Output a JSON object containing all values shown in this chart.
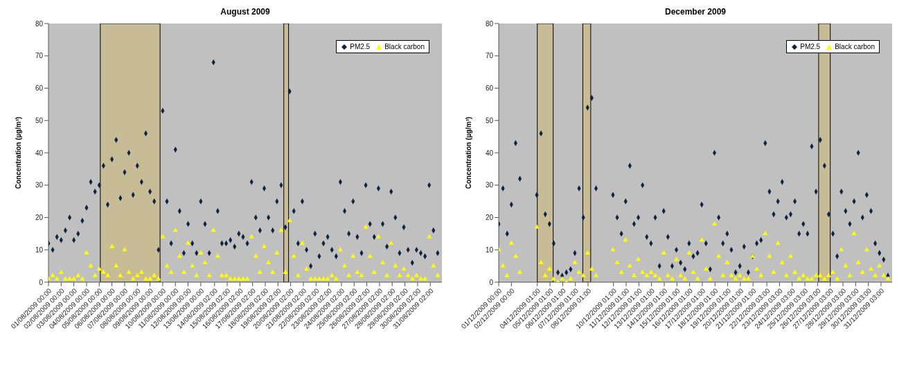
{
  "chart_data": [
    {
      "type": "scatter",
      "title": "August 2009",
      "ylabel": "Concentration (µg/m³)",
      "legend": "top right",
      "grid": false,
      "x": [
        "2009-08-01T00:00",
        "2009-08-01T08:00",
        "2009-08-01T16:00",
        "2009-08-02T00:00",
        "2009-08-02T08:00",
        "2009-08-02T16:00",
        "2009-08-03T00:00",
        "2009-08-03T08:00",
        "2009-08-03T16:00",
        "2009-08-04T00:00",
        "2009-08-04T08:00",
        "2009-08-04T16:00",
        "2009-08-05T00:00",
        "2009-08-05T08:00",
        "2009-08-05T16:00",
        "2009-08-06T00:00",
        "2009-08-06T08:00",
        "2009-08-06T16:00",
        "2009-08-07T00:00",
        "2009-08-07T08:00",
        "2009-08-07T16:00",
        "2009-08-08T00:00",
        "2009-08-08T08:00",
        "2009-08-08T16:00",
        "2009-08-09T00:00",
        "2009-08-09T08:00",
        "2009-08-09T16:00",
        "2009-08-10T00:00",
        "2009-08-10T08:00",
        "2009-08-10T16:00",
        "2009-08-11T00:00",
        "2009-08-11T08:00",
        "2009-08-11T16:00",
        "2009-08-12T00:00",
        "2009-08-12T08:00",
        "2009-08-12T16:00",
        "2009-08-13T00:00",
        "2009-08-13T08:00",
        "2009-08-13T16:00",
        "2009-08-14T00:00",
        "2009-08-14T08:00",
        "2009-08-14T16:00",
        "2009-08-15T00:00",
        "2009-08-15T08:00",
        "2009-08-15T16:00",
        "2009-08-16T00:00",
        "2009-08-16T08:00",
        "2009-08-16T16:00",
        "2009-08-17T00:00",
        "2009-08-17T08:00",
        "2009-08-17T16:00",
        "2009-08-18T00:00",
        "2009-08-18T08:00",
        "2009-08-18T16:00",
        "2009-08-19T00:00",
        "2009-08-19T08:00",
        "2009-08-19T16:00",
        "2009-08-20T00:00",
        "2009-08-20T08:00",
        "2009-08-20T16:00",
        "2009-08-21T00:00",
        "2009-08-21T08:00",
        "2009-08-21T16:00",
        "2009-08-22T00:00",
        "2009-08-22T08:00",
        "2009-08-22T16:00",
        "2009-08-23T00:00",
        "2009-08-23T08:00",
        "2009-08-23T16:00",
        "2009-08-24T00:00",
        "2009-08-24T08:00",
        "2009-08-24T16:00",
        "2009-08-25T00:00",
        "2009-08-25T08:00",
        "2009-08-25T16:00",
        "2009-08-26T00:00",
        "2009-08-26T08:00",
        "2009-08-26T16:00",
        "2009-08-27T00:00",
        "2009-08-27T08:00",
        "2009-08-27T16:00",
        "2009-08-28T00:00",
        "2009-08-28T08:00",
        "2009-08-28T16:00",
        "2009-08-29T00:00",
        "2009-08-29T08:00",
        "2009-08-29T16:00",
        "2009-08-30T00:00",
        "2009-08-30T08:00",
        "2009-08-30T16:00",
        "2009-08-31T00:00",
        "2009-08-31T08:00",
        "2009-08-31T16:00"
      ],
      "series": [
        {
          "name": "PM2.5",
          "color": "#0d2340",
          "marker": "diamond",
          "values": [
            12,
            10,
            14,
            13,
            16,
            20,
            13,
            15,
            19,
            23,
            31,
            28,
            30,
            36,
            24,
            38,
            44,
            26,
            34,
            40,
            27,
            36,
            31,
            46,
            28,
            25,
            10,
            53,
            25,
            12,
            41,
            22,
            9,
            18,
            12,
            9,
            25,
            18,
            9,
            68,
            22,
            12,
            12,
            13,
            11,
            15,
            14,
            12,
            31,
            20,
            16,
            29,
            20,
            16,
            25,
            30,
            17,
            59,
            22,
            12,
            25,
            10,
            5,
            15,
            8,
            12,
            14,
            10,
            8,
            31,
            22,
            15,
            25,
            14,
            9,
            30,
            18,
            14,
            29,
            18,
            11,
            28,
            20,
            9,
            17,
            10,
            6,
            10,
            9,
            8,
            30,
            16,
            9
          ]
        },
        {
          "name": "Black carbon",
          "color": "#ffff00",
          "marker": "triangle",
          "values": [
            1,
            2,
            1,
            3,
            1,
            1,
            1,
            2,
            1,
            9,
            5,
            2,
            4,
            3,
            2,
            11,
            5,
            2,
            10,
            3,
            1,
            2,
            3,
            1,
            1,
            2,
            1,
            14,
            5,
            3,
            16,
            8,
            3,
            12,
            5,
            2,
            9,
            6,
            2,
            16,
            8,
            2,
            2,
            1,
            1,
            1,
            1,
            1,
            14,
            8,
            3,
            11,
            6,
            3,
            9,
            16,
            3,
            19,
            8,
            2,
            12,
            4,
            1,
            1,
            1,
            1,
            1,
            2,
            1,
            10,
            5,
            2,
            8,
            3,
            2,
            17,
            8,
            3,
            14,
            6,
            2,
            12,
            5,
            2,
            4,
            2,
            1,
            2,
            1,
            1,
            14,
            5,
            2
          ]
        }
      ],
      "xlim": [
        "2009-08-01T00:00",
        "2009-09-01T00:00"
      ],
      "xticks": [
        {
          "value": "2009-08-01T00:00",
          "label": "01/08/2009 00:00"
        },
        {
          "value": "2009-08-02T00:00",
          "label": "02/08/2009 00:00"
        },
        {
          "value": "2009-08-03T00:00",
          "label": "03/08/2009 00:00"
        },
        {
          "value": "2009-08-04T00:00",
          "label": "04/08/2009 00:00"
        },
        {
          "value": "2009-08-05T00:00",
          "label": "05/08/2009 00:00"
        },
        {
          "value": "2009-08-06T00:00",
          "label": "06/08/2009 00:00"
        },
        {
          "value": "2009-08-07T00:00",
          "label": "07/08/2009 00:00"
        },
        {
          "value": "2009-08-08T00:00",
          "label": "08/08/2009 00:00"
        },
        {
          "value": "2009-08-09T00:00",
          "label": "09/08/2009 00:00"
        },
        {
          "value": "2009-08-10T00:00",
          "label": "10/08/2009 00:00"
        },
        {
          "value": "2009-08-11T00:00",
          "label": "11/08/2009 00:00"
        },
        {
          "value": "2009-08-12T00:00",
          "label": "12/08/2009 00:00"
        },
        {
          "value": "2009-08-13T00:00",
          "label": "13/08/2009 00:00"
        },
        {
          "value": "2009-08-14T02:00",
          "label": "14/08/2009 02:00"
        },
        {
          "value": "2009-08-15T02:00",
          "label": "15/08/2009 02:00"
        },
        {
          "value": "2009-08-16T02:00",
          "label": "16/08/2009 02:00"
        },
        {
          "value": "2009-08-17T02:00",
          "label": "17/08/2009 02:00"
        },
        {
          "value": "2009-08-18T02:00",
          "label": "18/08/2009 02:00"
        },
        {
          "value": "2009-08-19T02:00",
          "label": "19/08/2009 02:00"
        },
        {
          "value": "2009-08-20T02:00",
          "label": "20/08/2009 02:00"
        },
        {
          "value": "2009-08-21T02:00",
          "label": "21/08/2009 02:00"
        },
        {
          "value": "2009-08-22T02:00",
          "label": "22/08/2009 02:00"
        },
        {
          "value": "2009-08-23T02:00",
          "label": "23/08/2009 02:00"
        },
        {
          "value": "2009-08-24T02:00",
          "label": "24/08/2009 02:00"
        },
        {
          "value": "2009-08-25T02:00",
          "label": "25/08/2009 02:00"
        },
        {
          "value": "2009-08-26T02:00",
          "label": "26/08/2009 02:00"
        },
        {
          "value": "2009-08-27T02:00",
          "label": "27/08/2009 02:00"
        },
        {
          "value": "2009-08-28T02:00",
          "label": "28/08/2009 02:00"
        },
        {
          "value": "2009-08-29T02:00",
          "label": "29/08/2009 02:00"
        },
        {
          "value": "2009-08-30T02:00",
          "label": "30/08/2009 02:00"
        },
        {
          "value": "2009-08-31T02:00",
          "label": "31/08/2009 02:00"
        }
      ],
      "ylim": [
        0,
        80
      ],
      "yticks": [
        0,
        10,
        20,
        30,
        40,
        50,
        60,
        70,
        80
      ],
      "bands": [
        {
          "axis": "x",
          "from": "2009-08-05T02:00",
          "to": "2009-08-09T19:00",
          "color": "#c8bc96"
        },
        {
          "axis": "x",
          "from": "2009-08-19T13:00",
          "to": "2009-08-19T22:00",
          "color": "#c8bc96"
        }
      ]
    },
    {
      "type": "scatter",
      "title": "December 2009",
      "ylabel": "Concentration (µg/m³)",
      "legend": "top right",
      "grid": false,
      "x": [
        "2009-12-01T00:00",
        "2009-12-01T08:00",
        "2009-12-01T16:00",
        "2009-12-02T00:00",
        "2009-12-02T08:00",
        "2009-12-02T16:00",
        "2009-12-04T00:00",
        "2009-12-04T08:00",
        "2009-12-04T16:00",
        "2009-12-05T00:00",
        "2009-12-05T08:00",
        "2009-12-05T16:00",
        "2009-12-06T00:00",
        "2009-12-06T08:00",
        "2009-12-06T16:00",
        "2009-12-07T00:00",
        "2009-12-07T08:00",
        "2009-12-07T16:00",
        "2009-12-08T00:00",
        "2009-12-08T08:00",
        "2009-12-08T16:00",
        "2009-12-10T00:00",
        "2009-12-10T08:00",
        "2009-12-10T16:00",
        "2009-12-11T00:00",
        "2009-12-11T08:00",
        "2009-12-11T16:00",
        "2009-12-12T00:00",
        "2009-12-12T08:00",
        "2009-12-12T16:00",
        "2009-12-13T00:00",
        "2009-12-13T08:00",
        "2009-12-13T16:00",
        "2009-12-14T00:00",
        "2009-12-14T08:00",
        "2009-12-14T16:00",
        "2009-12-15T00:00",
        "2009-12-15T08:00",
        "2009-12-15T16:00",
        "2009-12-16T00:00",
        "2009-12-16T08:00",
        "2009-12-16T16:00",
        "2009-12-17T00:00",
        "2009-12-17T08:00",
        "2009-12-17T16:00",
        "2009-12-18T00:00",
        "2009-12-18T08:00",
        "2009-12-18T16:00",
        "2009-12-19T00:00",
        "2009-12-19T08:00",
        "2009-12-19T16:00",
        "2009-12-20T00:00",
        "2009-12-20T08:00",
        "2009-12-20T16:00",
        "2009-12-21T00:00",
        "2009-12-21T08:00",
        "2009-12-21T16:00",
        "2009-12-22T00:00",
        "2009-12-22T08:00",
        "2009-12-22T16:00",
        "2009-12-23T00:00",
        "2009-12-23T08:00",
        "2009-12-23T16:00",
        "2009-12-24T00:00",
        "2009-12-24T08:00",
        "2009-12-24T16:00",
        "2009-12-25T00:00",
        "2009-12-25T08:00",
        "2009-12-25T16:00",
        "2009-12-26T00:00",
        "2009-12-26T08:00",
        "2009-12-26T16:00",
        "2009-12-27T00:00",
        "2009-12-27T08:00",
        "2009-12-27T16:00",
        "2009-12-28T00:00",
        "2009-12-28T08:00",
        "2009-12-28T16:00",
        "2009-12-29T00:00",
        "2009-12-29T08:00",
        "2009-12-29T16:00",
        "2009-12-30T00:00",
        "2009-12-30T08:00",
        "2009-12-30T16:00",
        "2009-12-31T00:00",
        "2009-12-31T08:00",
        "2009-12-31T16:00"
      ],
      "series": [
        {
          "name": "PM2.5",
          "color": "#0d2340",
          "marker": "diamond",
          "values": [
            18,
            29,
            15,
            24,
            43,
            32,
            27,
            46,
            21,
            18,
            12,
            3,
            2,
            3,
            4,
            9,
            29,
            20,
            54,
            57,
            29,
            27,
            20,
            15,
            25,
            36,
            18,
            20,
            30,
            14,
            12,
            20,
            5,
            22,
            14,
            5,
            10,
            6,
            4,
            12,
            8,
            9,
            24,
            12,
            4,
            40,
            20,
            12,
            15,
            10,
            3,
            5,
            11,
            3,
            8,
            12,
            13,
            43,
            28,
            21,
            25,
            31,
            20,
            21,
            25,
            15,
            18,
            15,
            42,
            28,
            44,
            36,
            21,
            15,
            8,
            28,
            22,
            18,
            25,
            40,
            20,
            27,
            22,
            12,
            9,
            7,
            2
          ]
        },
        {
          "name": "Black carbon",
          "color": "#ffff00",
          "marker": "triangle",
          "values": [
            10,
            5,
            2,
            12,
            8,
            3,
            17,
            6,
            2,
            4,
            1,
            0,
            1,
            0,
            1,
            6,
            3,
            2,
            9,
            4,
            2,
            10,
            6,
            3,
            13,
            5,
            2,
            7,
            3,
            2,
            3,
            2,
            1,
            9,
            2,
            1,
            7,
            2,
            1,
            9,
            3,
            1,
            13,
            4,
            1,
            18,
            8,
            2,
            6,
            2,
            1,
            2,
            1,
            1,
            8,
            4,
            2,
            15,
            8,
            3,
            12,
            6,
            2,
            8,
            3,
            1,
            2,
            1,
            1,
            2,
            2,
            1,
            2,
            3,
            1,
            10,
            5,
            2,
            15,
            6,
            3,
            10,
            4,
            2,
            5,
            2,
            1
          ]
        }
      ],
      "xlim": [
        "2009-12-01T00:00",
        "2010-01-01T00:00"
      ],
      "xticks": [
        {
          "value": "2009-12-01T00:00",
          "label": "01/12/2009 00:00"
        },
        {
          "value": "2009-12-02T00:00",
          "label": "02/12/2009 00:00"
        },
        {
          "value": "2009-12-04T01:00",
          "label": "04/12/2009 01:00"
        },
        {
          "value": "2009-12-05T01:00",
          "label": "05/12/2009 01:00"
        },
        {
          "value": "2009-12-06T01:00",
          "label": "06/12/2009 01:00"
        },
        {
          "value": "2009-12-07T01:00",
          "label": "07/12/2009 01:00"
        },
        {
          "value": "2009-12-08T01:00",
          "label": "08/12/2009 01:00"
        },
        {
          "value": "2009-12-10T01:00",
          "label": "10/12/2009 01:00"
        },
        {
          "value": "2009-12-11T01:00",
          "label": "11/12/2009 01:00"
        },
        {
          "value": "2009-12-12T01:00",
          "label": "12/12/2009 01:00"
        },
        {
          "value": "2009-12-13T01:00",
          "label": "13/12/2009 01:00"
        },
        {
          "value": "2009-12-14T01:00",
          "label": "14/12/2009 01:00"
        },
        {
          "value": "2009-12-15T01:00",
          "label": "15/12/2009 01:00"
        },
        {
          "value": "2009-12-16T01:00",
          "label": "16/12/2009 01:00"
        },
        {
          "value": "2009-12-17T01:00",
          "label": "17/12/2009 01:00"
        },
        {
          "value": "2009-12-18T01:00",
          "label": "18/12/2009 01:00"
        },
        {
          "value": "2009-12-19T01:00",
          "label": "19/12/2009 01:00"
        },
        {
          "value": "2009-12-20T01:00",
          "label": "20/12/2009 01:00"
        },
        {
          "value": "2009-12-21T01:00",
          "label": "21/12/2009 01:00"
        },
        {
          "value": "2009-12-22T03:00",
          "label": "22/12/2009 03:00"
        },
        {
          "value": "2009-12-23T03:00",
          "label": "23/12/2009 03:00"
        },
        {
          "value": "2009-12-24T03:00",
          "label": "24/12/2009 03:00"
        },
        {
          "value": "2009-12-25T03:00",
          "label": "25/12/2009 03:00"
        },
        {
          "value": "2009-12-26T03:00",
          "label": "26/12/2009 03:00"
        },
        {
          "value": "2009-12-27T03:00",
          "label": "27/12/2009 03:00"
        },
        {
          "value": "2009-12-28T03:00",
          "label": "28/12/2009 03:00"
        },
        {
          "value": "2009-12-29T03:00",
          "label": "29/12/2009 03:00"
        },
        {
          "value": "2009-12-30T03:00",
          "label": "30/12/2009 03:00"
        },
        {
          "value": "2009-12-31T03:00",
          "label": "31/12/2009 03:00"
        }
      ],
      "ylim": [
        0,
        80
      ],
      "yticks": [
        0,
        10,
        20,
        30,
        40,
        50,
        60,
        70,
        80
      ],
      "bands": [
        {
          "axis": "x",
          "from": "2009-12-04T01:00",
          "to": "2009-12-05T07:00",
          "color": "#c8bc96"
        },
        {
          "axis": "x",
          "from": "2009-12-07T15:00",
          "to": "2009-12-08T06:00",
          "color": "#c8bc96"
        },
        {
          "axis": "x",
          "from": "2009-12-26T05:00",
          "to": "2009-12-27T03:00",
          "color": "#c8bc96"
        }
      ]
    }
  ]
}
